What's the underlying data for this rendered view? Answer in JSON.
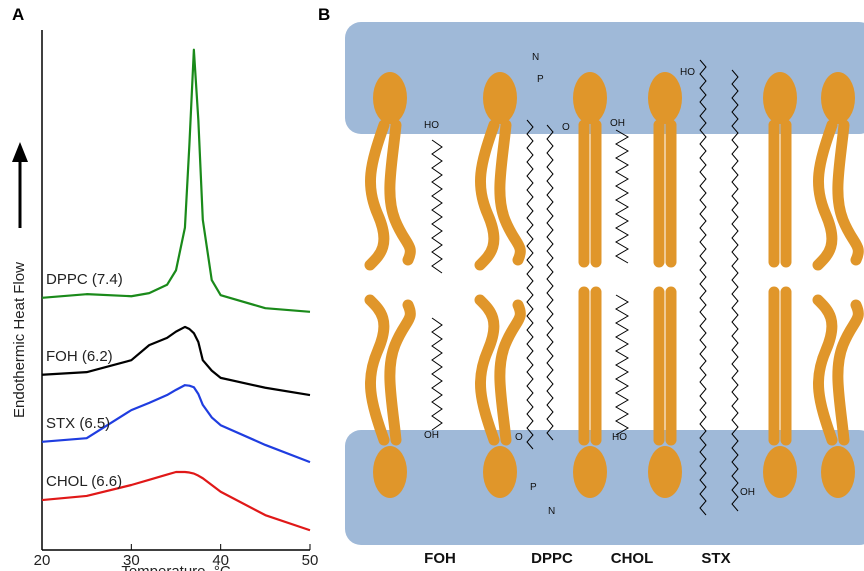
{
  "chart_data": {
    "type": "line",
    "panel_label": "A",
    "xlabel": "Temperature, °C",
    "ylabel": "Endothermic Heat Flow",
    "x": [
      20,
      25,
      30,
      32,
      34,
      35,
      36,
      36.5,
      37,
      37.5,
      38,
      39,
      40,
      45,
      50
    ],
    "series": [
      {
        "name": "DPPC (7.4)",
        "color": "#1a8a1a",
        "values": [
          48.5,
          49.2,
          48.8,
          49.4,
          51,
          53.8,
          62,
          78,
          96.2,
          82.7,
          63.5,
          51.9,
          49,
          46.5,
          45.8
        ]
      },
      {
        "name": "FOH (6.2)",
        "color": "#000000",
        "values": [
          33.7,
          34.2,
          36.5,
          39.4,
          40.8,
          42,
          42.9,
          42.5,
          41.7,
          40,
          36.5,
          34.5,
          33.1,
          31.2,
          29.8
        ]
      },
      {
        "name": "STX (6.5)",
        "color": "#1f3de0",
        "values": [
          20.8,
          21.5,
          26.9,
          28.3,
          29.8,
          30.8,
          31.7,
          31.6,
          31.3,
          30,
          27.9,
          25.5,
          24,
          20.2,
          16.9
        ]
      },
      {
        "name": "CHOL (6.6)",
        "color": "#e01818",
        "values": [
          9.6,
          10.4,
          12.5,
          13.5,
          14.5,
          15,
          15,
          14.9,
          14.7,
          14.3,
          13.8,
          12.5,
          11.2,
          6.7,
          3.8
        ]
      }
    ],
    "xlim": [
      20,
      50
    ],
    "xticks": [
      20,
      30,
      40,
      50
    ],
    "ylim": [
      0,
      100
    ]
  },
  "diagram": {
    "panel_label": "B",
    "molecule_labels": [
      "FOH",
      "DPPC",
      "CHOL",
      "STX"
    ],
    "atom_labels": [
      "HO",
      "OH",
      "OH",
      "HO",
      "HO",
      "OH",
      "P",
      "N",
      "P",
      "N",
      "O",
      "O"
    ]
  }
}
